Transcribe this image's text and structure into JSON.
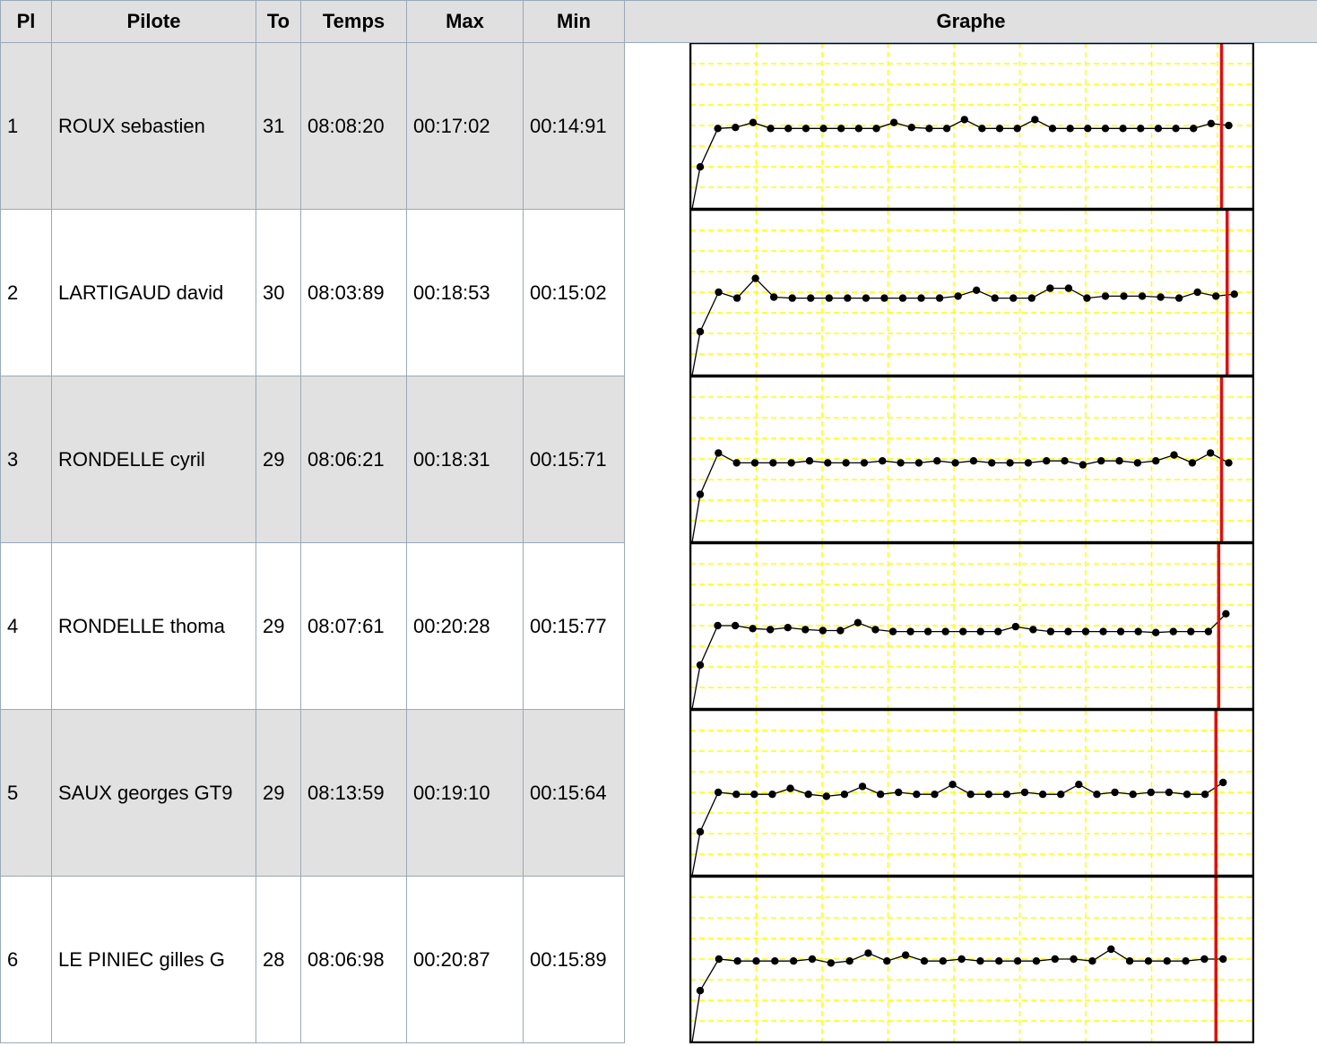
{
  "columns": {
    "pl": "Pl",
    "pilote": "Pilote",
    "to": "To",
    "temps": "Temps",
    "max": "Max",
    "min": "Min",
    "graphe": "Graphe"
  },
  "colors": {
    "row_alt": "#e1e1e1",
    "header_bg": "#e0e0e0",
    "grid": "#ffff00",
    "marker_line": "#dd1111",
    "line": "#000000"
  },
  "rows": [
    {
      "pl": "1",
      "pilote": "ROUX sebastien",
      "to": "31",
      "temps": "08:08:20",
      "max": "00:17:02",
      "min": "00:14:91",
      "chart_data": {
        "type": "line",
        "values": [
          2.1,
          0.15,
          0.1,
          -0.15,
          0.15,
          0.15,
          0.15,
          0.15,
          0.15,
          0.15,
          0.15,
          -0.15,
          0.1,
          0.15,
          0.15,
          -0.3,
          0.15,
          0.15,
          0.15,
          -0.3,
          0.15,
          0.15,
          0.15,
          0.15,
          0.15,
          0.15,
          0.15,
          0.15,
          0.15,
          -0.1,
          0.0
        ],
        "marker_fraction": 0.945
      }
    },
    {
      "pl": "2",
      "pilote": "LARTIGAUD david",
      "to": "30",
      "temps": "08:03:89",
      "max": "00:18:53",
      "min": "00:15:02",
      "chart_data": {
        "type": "line",
        "values": [
          2.0,
          0.0,
          0.3,
          -0.7,
          0.25,
          0.3,
          0.3,
          0.3,
          0.3,
          0.3,
          0.3,
          0.3,
          0.3,
          0.3,
          0.2,
          -0.1,
          0.3,
          0.3,
          0.3,
          -0.2,
          -0.2,
          0.3,
          0.2,
          0.2,
          0.2,
          0.25,
          0.3,
          0.0,
          0.2,
          0.1
        ],
        "marker_fraction": 0.955
      }
    },
    {
      "pl": "3",
      "pilote": "RONDELLE cyril",
      "to": "29",
      "temps": "08:06:21",
      "max": "00:18:31",
      "min": "00:15:71",
      "chart_data": {
        "type": "line",
        "values": [
          1.8,
          -0.3,
          0.2,
          0.2,
          0.2,
          0.2,
          0.1,
          0.2,
          0.2,
          0.2,
          0.1,
          0.2,
          0.2,
          0.1,
          0.2,
          0.1,
          0.2,
          0.2,
          0.2,
          0.1,
          0.1,
          0.3,
          0.1,
          0.1,
          0.2,
          0.1,
          -0.2,
          0.2,
          -0.3,
          0.2
        ],
        "marker_fraction": 0.945
      }
    },
    {
      "pl": "4",
      "pilote": "RONDELLE thoma",
      "to": "29",
      "temps": "08:07:61",
      "max": "00:20:28",
      "min": "00:15:77",
      "chart_data": {
        "type": "line",
        "values": [
          2.0,
          0.0,
          0.0,
          0.15,
          0.2,
          0.1,
          0.2,
          0.25,
          0.25,
          -0.15,
          0.2,
          0.3,
          0.3,
          0.3,
          0.3,
          0.3,
          0.3,
          0.3,
          0.05,
          0.2,
          0.3,
          0.3,
          0.3,
          0.3,
          0.3,
          0.3,
          0.35,
          0.3,
          0.3,
          0.3,
          -0.6
        ],
        "marker_fraction": 0.94
      }
    },
    {
      "pl": "5",
      "pilote": "SAUX georges GT9",
      "to": "29",
      "temps": "08:13:59",
      "max": "00:19:10",
      "min": "00:15:64",
      "chart_data": {
        "type": "line",
        "values": [
          2.0,
          0.0,
          0.1,
          0.1,
          0.1,
          -0.2,
          0.1,
          0.2,
          0.1,
          -0.3,
          0.1,
          0.0,
          0.1,
          0.1,
          -0.4,
          0.1,
          0.1,
          0.1,
          0.0,
          0.1,
          0.1,
          -0.4,
          0.1,
          0.0,
          0.1,
          0.0,
          0.0,
          0.1,
          0.1,
          -0.5
        ],
        "marker_fraction": 0.935
      }
    },
    {
      "pl": "6",
      "pilote": "LE PINIEC gilles G",
      "to": "28",
      "temps": "08:06:98",
      "max": "00:20:87",
      "min": "00:15:89",
      "chart_data": {
        "type": "line",
        "values": [
          1.6,
          0.0,
          0.1,
          0.1,
          0.1,
          0.1,
          0.0,
          0.2,
          0.1,
          -0.3,
          0.1,
          -0.2,
          0.1,
          0.1,
          0.0,
          0.1,
          0.1,
          0.1,
          0.1,
          0.0,
          0.0,
          0.1,
          -0.5,
          0.1,
          0.1,
          0.1,
          0.1,
          0.0,
          0.0
        ],
        "marker_fraction": 0.935
      }
    }
  ]
}
